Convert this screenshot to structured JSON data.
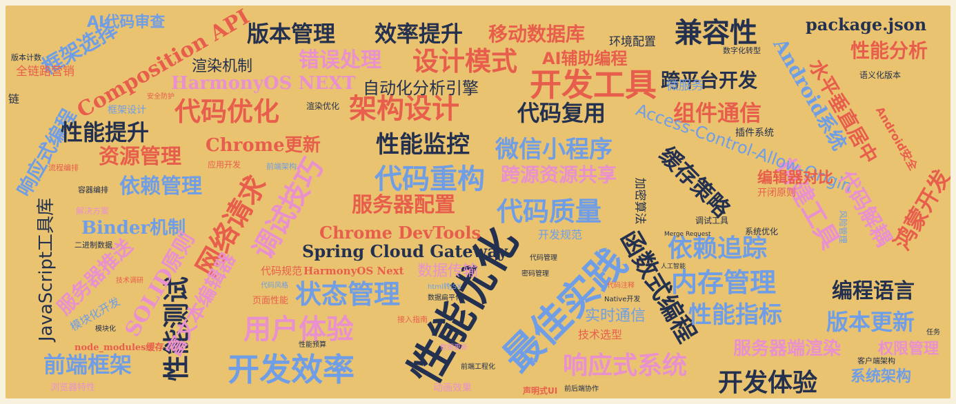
{
  "words": [
    {
      "text": "性能优化",
      "color": "#24304f",
      "size": "xl"
    },
    {
      "text": "最佳实践",
      "color": "#6f9de6",
      "size": "xl"
    },
    {
      "text": "开发效率",
      "color": "#6f9de6",
      "size": "xl"
    },
    {
      "text": "开发工具",
      "color": "#e85e4d",
      "size": "l"
    },
    {
      "text": "代码优化",
      "color": "#e85e4d",
      "size": "l"
    },
    {
      "text": "架构设计",
      "color": "#e85e4d",
      "size": "l"
    },
    {
      "text": "用户体验",
      "color": "#e991cf",
      "size": "l"
    },
    {
      "text": "状态管理",
      "color": "#6f9de6",
      "size": "l"
    },
    {
      "text": "网络请求",
      "color": "#e85e4d",
      "size": "l"
    },
    {
      "text": "调试技巧",
      "color": "#e991cf",
      "size": "l"
    },
    {
      "text": "代码重构",
      "color": "#6f9de6",
      "size": "l"
    },
    {
      "text": "代码质量",
      "color": "#6f9de6",
      "size": "l"
    },
    {
      "text": "内存管理",
      "color": "#6f9de6",
      "size": "l"
    },
    {
      "text": "依赖追踪",
      "color": "#6f9de6",
      "size": "l"
    },
    {
      "text": "函数式编程",
      "color": "#24304f",
      "size": "l"
    },
    {
      "text": "性能测试",
      "color": "#24304f",
      "size": "l"
    },
    {
      "text": "构建工具",
      "color": "#e991cf",
      "size": "l"
    },
    {
      "text": "兼容性",
      "color": "#24304f",
      "size": "l"
    },
    {
      "text": "设计模式",
      "color": "#e85e4d",
      "size": "l"
    },
    {
      "text": "错误处理",
      "color": "#e991cf",
      "size": "m"
    },
    {
      "text": "版本管理",
      "color": "#24304f",
      "size": "m"
    },
    {
      "text": "效率提升",
      "color": "#24304f",
      "size": "m"
    },
    {
      "text": "移动数据库",
      "color": "#e85e4d",
      "size": "m"
    },
    {
      "text": "Composition API",
      "color": "#e85e4d",
      "size": "m"
    },
    {
      "text": "HarmonyOS NEXT",
      "color": "#e991cf",
      "size": "m"
    },
    {
      "text": "AI辅助编程",
      "color": "#e85e4d",
      "size": "m"
    },
    {
      "text": "跨平台开发",
      "color": "#24304f",
      "size": "m"
    },
    {
      "text": "package.json",
      "color": "#24304f",
      "size": "m"
    },
    {
      "text": "Android系统",
      "color": "#6f9de6",
      "size": "m"
    },
    {
      "text": "水平垂直居中",
      "color": "#e85e4d",
      "size": "m"
    },
    {
      "text": "性能分析",
      "color": "#e85e4d",
      "size": "m"
    },
    {
      "text": "框架选择",
      "color": "#6f9de6",
      "size": "m"
    },
    {
      "text": "响应式编程",
      "color": "#6f9de6",
      "size": "m"
    },
    {
      "text": "渲染机制",
      "color": "#24304f",
      "size": "s"
    },
    {
      "text": "自动化分析引擎",
      "color": "#24304f",
      "size": "s"
    },
    {
      "text": "代码复用",
      "color": "#24304f",
      "size": "m"
    },
    {
      "text": "组件通信",
      "color": "#e85e4d",
      "size": "m"
    },
    {
      "text": "性能提升",
      "color": "#24304f",
      "size": "m"
    },
    {
      "text": "Chrome更新",
      "color": "#e85e4d",
      "size": "m"
    },
    {
      "text": "性能监控",
      "color": "#24304f",
      "size": "m"
    },
    {
      "text": "微信小程序",
      "color": "#6f9de6",
      "size": "m"
    },
    {
      "text": "资源管理",
      "color": "#e85e4d",
      "size": "m"
    },
    {
      "text": "Access-Control-Allow-Origin",
      "color": "#6f9de6",
      "size": "m"
    },
    {
      "text": "缓存策略",
      "color": "#24304f",
      "size": "m"
    },
    {
      "text": "跨源资源共享",
      "color": "#e991cf",
      "size": "m"
    },
    {
      "text": "依赖管理",
      "color": "#6f9de6",
      "size": "m"
    },
    {
      "text": "服务器配置",
      "color": "#e85e4d",
      "size": "m"
    },
    {
      "text": "编辑器对比",
      "color": "#e85e4d",
      "size": "s"
    },
    {
      "text": "代码解耦",
      "color": "#e991cf",
      "size": "m"
    },
    {
      "text": "鸿蒙开发",
      "color": "#e85e4d",
      "size": "m"
    },
    {
      "text": "Binder机制",
      "color": "#6f9de6",
      "size": "m"
    },
    {
      "text": "JavaScript工具库",
      "color": "#24304f",
      "size": "m"
    },
    {
      "text": "Chrome DevTools",
      "color": "#e85e4d",
      "size": "m"
    },
    {
      "text": "Spring Cloud Gateway",
      "color": "#24304f",
      "size": "m"
    },
    {
      "text": "服务器推送",
      "color": "#e991cf",
      "size": "m"
    },
    {
      "text": "SOLID原则",
      "color": "#e991cf",
      "size": "m"
    },
    {
      "text": "富文本编辑器",
      "color": "#e991cf",
      "size": "m"
    },
    {
      "text": "编程语言",
      "color": "#24304f",
      "size": "m"
    },
    {
      "text": "性能指标",
      "color": "#6f9de6",
      "size": "m"
    },
    {
      "text": "版本更新",
      "color": "#6f9de6",
      "size": "m"
    },
    {
      "text": "响应式系统",
      "color": "#e991cf",
      "size": "m"
    },
    {
      "text": "前端框架",
      "color": "#6f9de6",
      "size": "m"
    },
    {
      "text": "开发体验",
      "color": "#24304f",
      "size": "m"
    },
    {
      "text": "服务器端渲染",
      "color": "#e991cf",
      "size": "s"
    },
    {
      "text": "权限管理",
      "color": "#e991cf",
      "size": "s"
    },
    {
      "text": "系统架构",
      "color": "#6f9de6",
      "size": "s"
    },
    {
      "text": "实时通信",
      "color": "#6f9de6",
      "size": "s"
    },
    {
      "text": "技术选型",
      "color": "#e85e4d",
      "size": "s"
    },
    {
      "text": "数据传输",
      "color": "#e991cf",
      "size": "s"
    },
    {
      "text": "AI代码审查",
      "color": "#6f9de6",
      "size": "s"
    },
    {
      "text": "环境配置",
      "color": "#24304f",
      "size": "s"
    },
    {
      "text": "全链路营销",
      "color": "#e85e4d",
      "size": "s"
    },
    {
      "text": "微服务",
      "color": "#6f9de6",
      "size": "s"
    },
    {
      "text": "插件系统",
      "color": "#24304f",
      "size": "xs"
    },
    {
      "text": "语义化版本",
      "color": "#24304f",
      "size": "xs"
    },
    {
      "text": "开发规范",
      "color": "#6f9de6",
      "size": "s"
    },
    {
      "text": "加密算法",
      "color": "#24304f",
      "size": "s"
    },
    {
      "text": "开闭原则",
      "color": "#e85e4d",
      "size": "xs"
    },
    {
      "text": "风险管理",
      "color": "#6f9de6",
      "size": "xs"
    },
    {
      "text": "调试工具",
      "color": "#24304f",
      "size": "xs"
    },
    {
      "text": "系统优化",
      "color": "#24304f",
      "size": "xs"
    },
    {
      "text": "代码规范",
      "color": "#e85e4d",
      "size": "s"
    },
    {
      "text": "HarmonyOS Next",
      "color": "#e85e4d",
      "size": "s"
    },
    {
      "text": "页面性能",
      "color": "#e85e4d",
      "size": "xs"
    },
    {
      "text": "模块化开发",
      "color": "#6f9de6",
      "size": "s"
    },
    {
      "text": "node_modules缓存",
      "color": "#e85e4d",
      "size": "xs"
    },
    {
      "text": "浏览器特性",
      "color": "#e991cf",
      "size": "xs"
    },
    {
      "text": "动画效果",
      "color": "#e991cf",
      "size": "xs"
    },
    {
      "text": "声明式UI",
      "color": "#e85e4d",
      "size": "xs"
    },
    {
      "text": "框架设计",
      "color": "#6f9de6",
      "size": "xs"
    },
    {
      "text": "安全防护",
      "color": "#e85e4d",
      "size": "xs"
    },
    {
      "text": "渲染优化",
      "color": "#24304f",
      "size": "xs"
    },
    {
      "text": "应用开发",
      "color": "#e85e4d",
      "size": "xs"
    },
    {
      "text": "前端架构",
      "color": "#6f9de6",
      "size": "xs"
    },
    {
      "text": "流程编排",
      "color": "#e85e4d",
      "size": "xs"
    },
    {
      "text": "容器编排",
      "color": "#24304f",
      "size": "xs"
    },
    {
      "text": "解决方案",
      "color": "#e991cf",
      "size": "xs"
    },
    {
      "text": "二进制数据",
      "color": "#24304f",
      "size": "xs"
    },
    {
      "text": "版本计数",
      "color": "#24304f",
      "size": "xs"
    },
    {
      "text": "链",
      "color": "#24304f",
      "size": "xs"
    },
    {
      "text": "数字化转型",
      "color": "#24304f",
      "size": "xs"
    },
    {
      "text": "客户端架构",
      "color": "#24304f",
      "size": "xs"
    },
    {
      "text": "Native开发",
      "color": "#24304f",
      "size": "xs"
    },
    {
      "text": "接入指南",
      "color": "#e85e4d",
      "size": "xs"
    },
    {
      "text": "数据更新",
      "color": "#e991cf",
      "size": "xs"
    },
    {
      "text": "代码注释",
      "color": "#e85e4d",
      "size": "xs"
    },
    {
      "text": "代码风格",
      "color": "#6f9de6",
      "size": "xs"
    },
    {
      "text": "技术调研",
      "color": "#e85e4d",
      "size": "xs"
    },
    {
      "text": "数据扁平化",
      "color": "#24304f",
      "size": "xs"
    },
    {
      "text": "前端工程化",
      "color": "#24304f",
      "size": "xs"
    },
    {
      "text": "前后端协作",
      "color": "#24304f",
      "size": "xs"
    },
    {
      "text": "性能预算",
      "color": "#24304f",
      "size": "xs"
    },
    {
      "text": "Android安全",
      "color": "#e85e4d",
      "size": "s"
    },
    {
      "text": "代码管理",
      "color": "#24304f",
      "size": "xs"
    },
    {
      "text": "密码管理",
      "color": "#24304f",
      "size": "xs"
    },
    {
      "text": "html转JSX",
      "color": "#6f9de6",
      "size": "xs"
    },
    {
      "text": "Merge Request",
      "color": "#24304f",
      "size": "xs"
    },
    {
      "text": "模块化",
      "color": "#24304f",
      "size": "xs"
    },
    {
      "text": "人工智能",
      "color": "#24304f",
      "size": "xs"
    },
    {
      "text": "任务",
      "color": "#24304f",
      "size": "xs"
    }
  ],
  "palette": {
    "navy": "#24304f",
    "red": "#e85e4d",
    "blue": "#6f9de6",
    "pink": "#e991cf",
    "background": "#e9c36f"
  }
}
